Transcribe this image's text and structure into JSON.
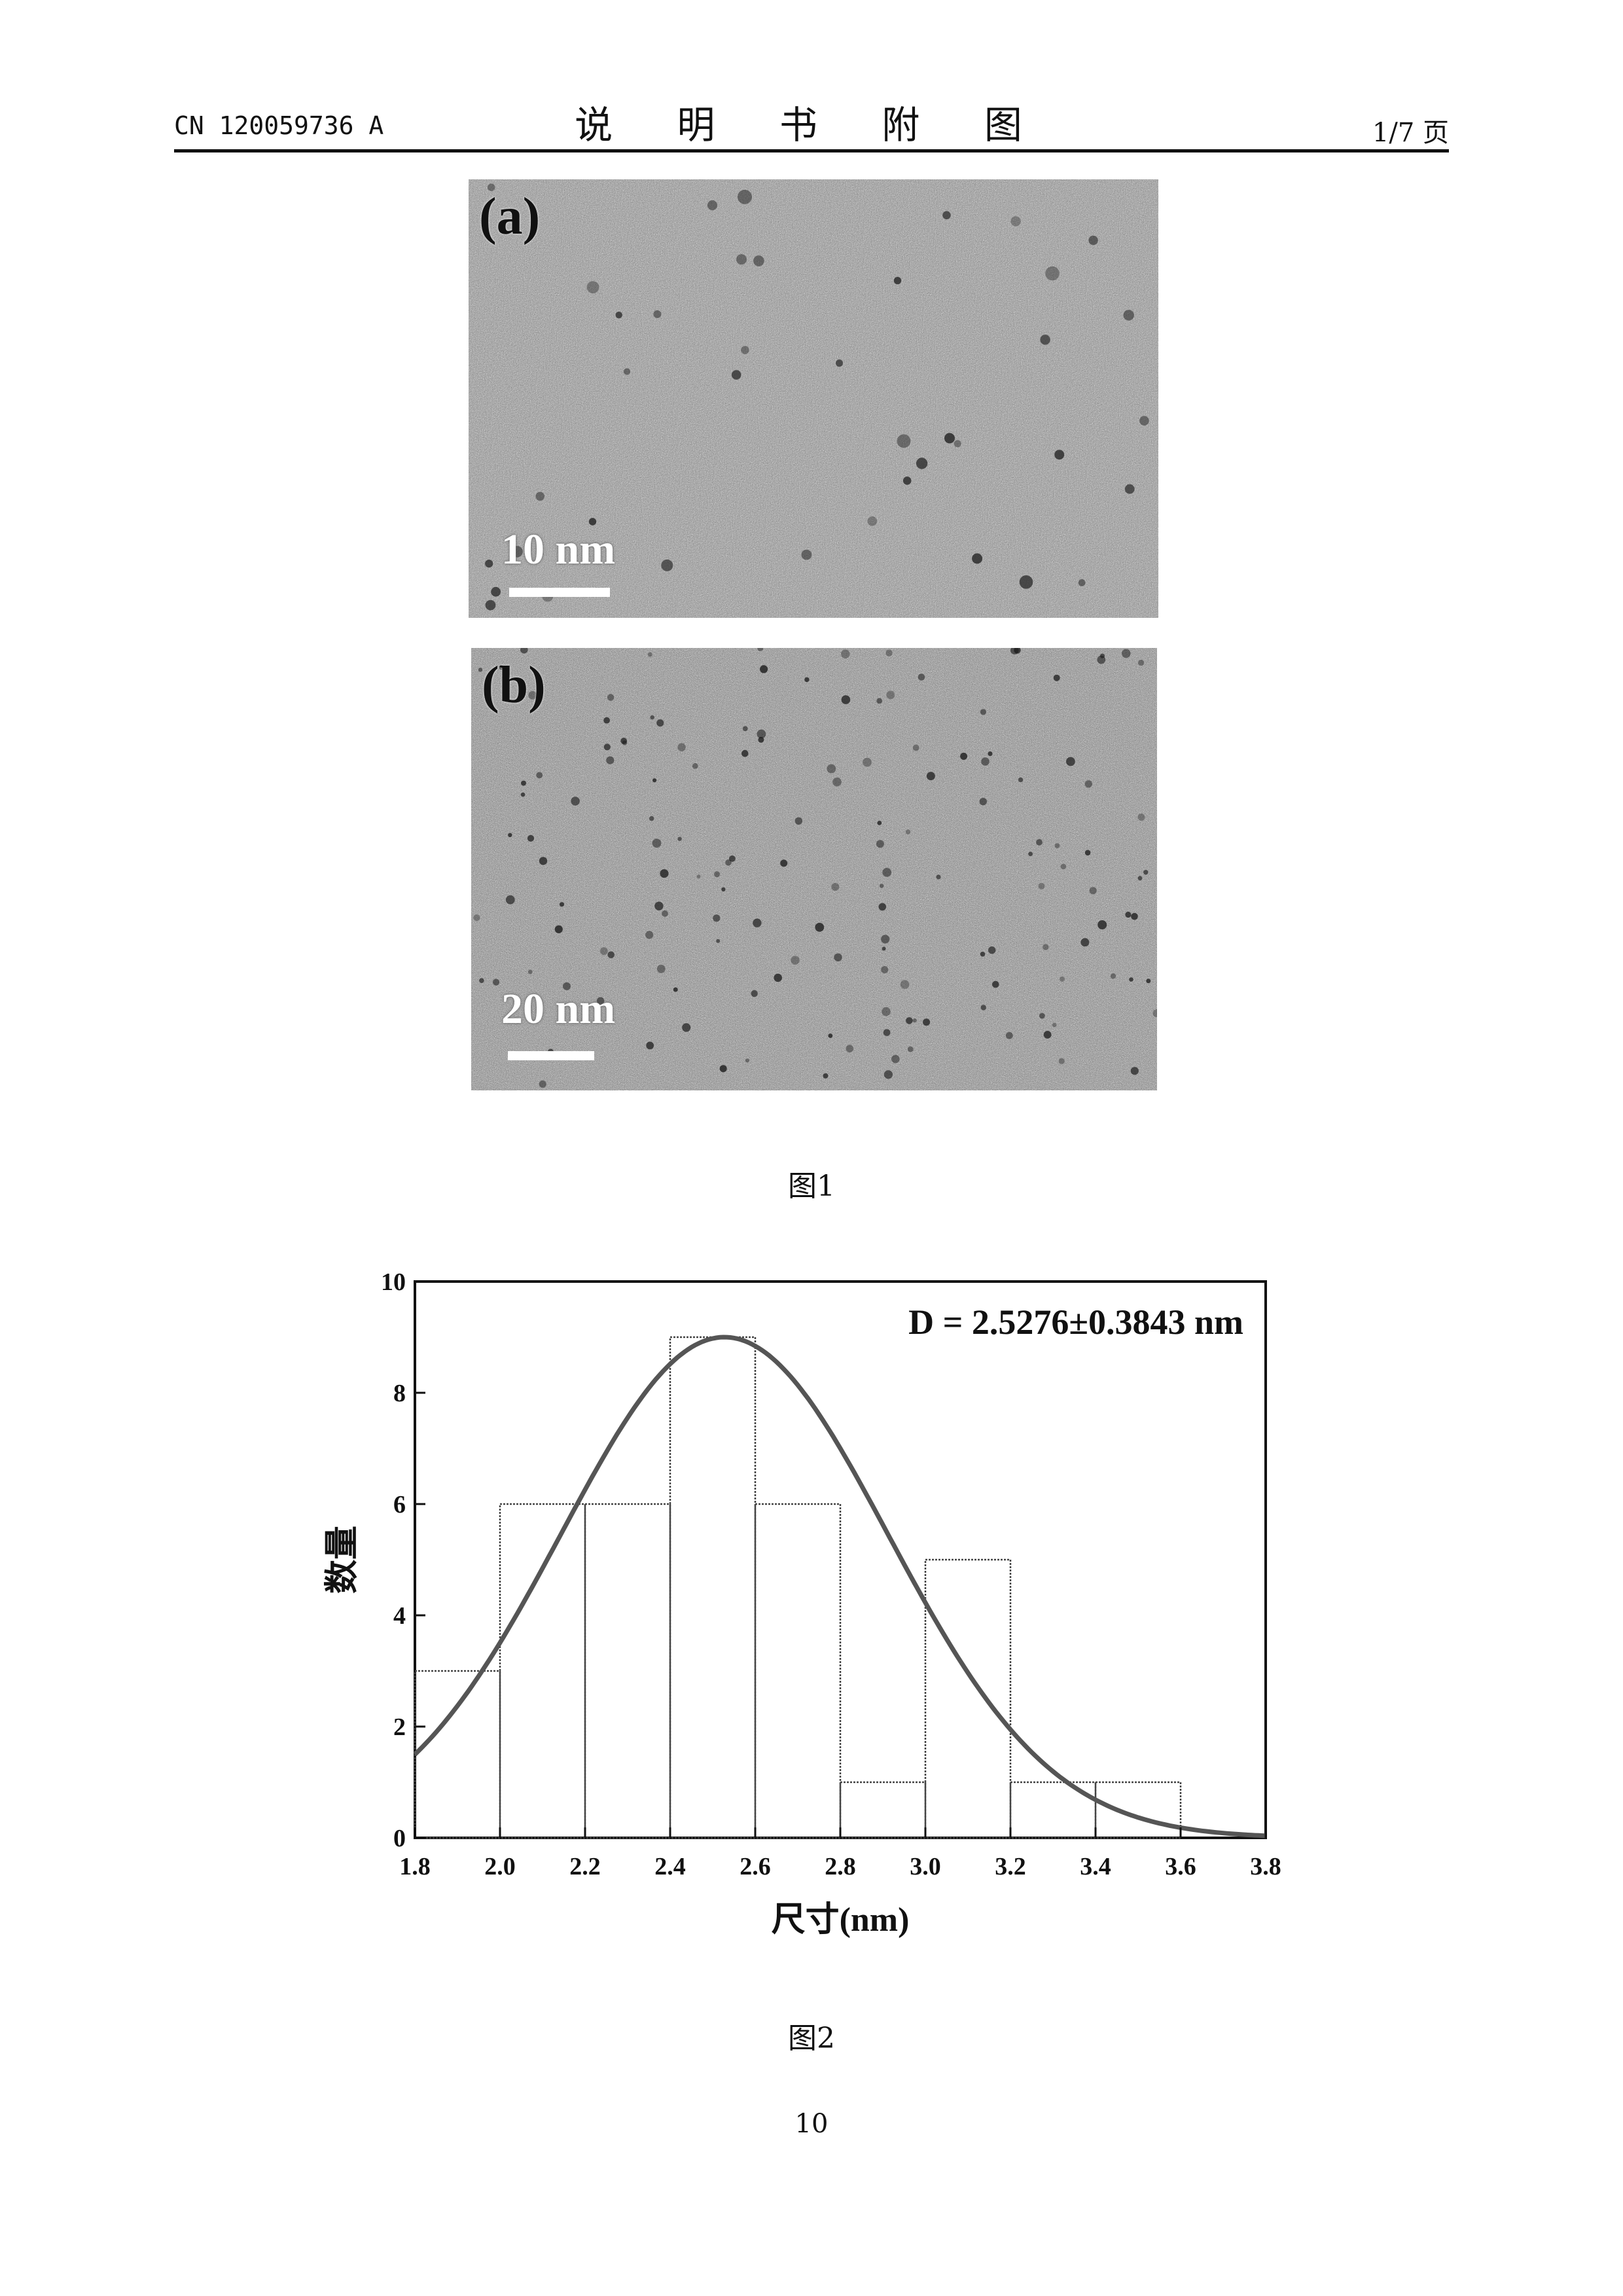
{
  "header": {
    "doc_number": "CN 120059736 A",
    "title": "说 明 书 附 图",
    "page_count": "1/7 页"
  },
  "figure1": {
    "caption": "图1",
    "panels": [
      {
        "label": "(a)",
        "scale_label": "10 nm"
      },
      {
        "label": "(b)",
        "scale_label": "20 nm"
      }
    ]
  },
  "figure2": {
    "caption": "图2"
  },
  "chart_data": {
    "type": "bar",
    "title": "",
    "annotation": "D = 2.5276±0.3843 nm",
    "xlabel": "尺寸(nm)",
    "ylabel": "数量",
    "xlim": [
      1.8,
      3.8
    ],
    "ylim": [
      0,
      10
    ],
    "x_ticks": [
      "1.8",
      "2.0",
      "2.2",
      "2.4",
      "2.6",
      "2.8",
      "3.0",
      "3.2",
      "3.4",
      "3.6",
      "3.8"
    ],
    "y_ticks": [
      "0",
      "2",
      "4",
      "6",
      "8",
      "10"
    ],
    "bins": [
      {
        "start": 1.8,
        "end": 2.0,
        "count": 3
      },
      {
        "start": 2.0,
        "end": 2.2,
        "count": 6
      },
      {
        "start": 2.2,
        "end": 2.4,
        "count": 6
      },
      {
        "start": 2.4,
        "end": 2.6,
        "count": 9
      },
      {
        "start": 2.6,
        "end": 2.8,
        "count": 6
      },
      {
        "start": 2.8,
        "end": 3.0,
        "count": 1
      },
      {
        "start": 3.0,
        "end": 3.2,
        "count": 5
      },
      {
        "start": 3.2,
        "end": 3.4,
        "count": 1
      },
      {
        "start": 3.4,
        "end": 3.6,
        "count": 1
      }
    ],
    "fit": {
      "type": "gaussian",
      "mean": 2.5276,
      "sigma": 0.3843,
      "peak": 9.0
    },
    "grid": false,
    "legend": "none"
  },
  "footer": {
    "page_number": "10"
  }
}
